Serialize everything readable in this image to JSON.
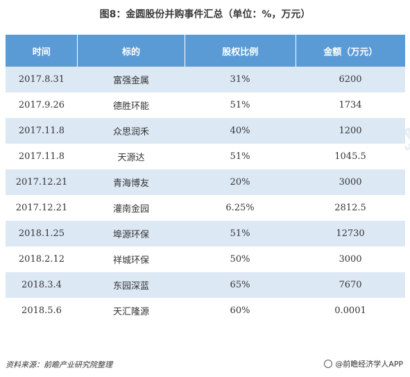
{
  "title": "图8：金圆股份并购事件汇总（单位：%，万元）",
  "table": {
    "headers": [
      "时间",
      "标的",
      "股权比例",
      "金额（万元）"
    ],
    "rows": [
      [
        "2017.8.31",
        "富强金属",
        "31%",
        "6200"
      ],
      [
        "2017.9.26",
        "德胜环能",
        "51%",
        "1734"
      ],
      [
        "2017.11.8",
        "众思润禾",
        "40%",
        "1200"
      ],
      [
        "2017.11.8",
        "天源达",
        "51%",
        "1045.5"
      ],
      [
        "2017.12.21",
        "青海博友",
        "20%",
        "3000"
      ],
      [
        "2017.12.21",
        "灌南金园",
        "6.25%",
        "2812.5"
      ],
      [
        "2018.1.25",
        "埠源环保",
        "51%",
        "12730"
      ],
      [
        "2018.2.12",
        "祥城环保",
        "50%",
        "3000"
      ],
      [
        "2018.3.4",
        "东园深蓝",
        "65%",
        "7670"
      ],
      [
        "2018.5.6",
        "天汇隆源",
        "60%",
        "0.0001"
      ]
    ]
  },
  "footer": {
    "source": "资料来源：前瞻产业研究院整理",
    "brand": "@前瞻经济学人APP"
  },
  "watermarks": [
    "前瞻产业研究院",
    "前瞻产业研究院",
    "前瞻产业研究院"
  ]
}
